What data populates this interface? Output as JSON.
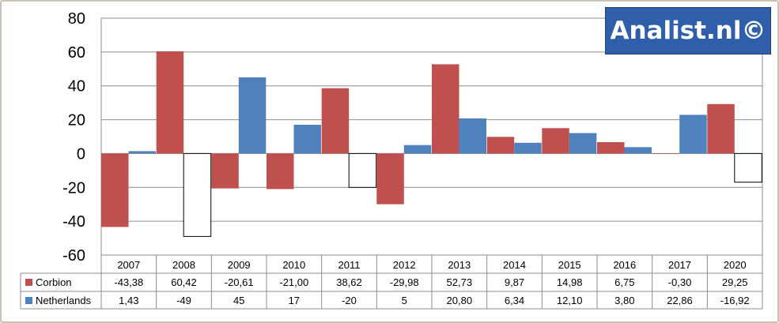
{
  "logo": {
    "text": "Analist.nl©"
  },
  "chart_data": {
    "type": "bar",
    "title": "",
    "xlabel": "",
    "ylabel": "",
    "ylim": [
      -60,
      80
    ],
    "yticks": [
      80,
      60,
      40,
      20,
      0,
      -20,
      -40,
      -60
    ],
    "grid": true,
    "legend": "table",
    "categories": [
      "2007",
      "2008",
      "2009",
      "2010",
      "2011",
      "2012",
      "2013",
      "2014",
      "2015",
      "2016",
      "2017",
      "2020"
    ],
    "series": [
      {
        "name": "Corbion",
        "color": "#c0504d",
        "values": [
          -43.38,
          60.42,
          -20.61,
          -21.0,
          38.62,
          -29.98,
          52.73,
          9.87,
          14.98,
          6.75,
          -0.3,
          29.25
        ],
        "labels": [
          "-43,38",
          "60,42",
          "-20,61",
          "-21,00",
          "38,62",
          "-29,98",
          "52,73",
          "9,87",
          "14,98",
          "6,75",
          "-0,30",
          "29,25"
        ]
      },
      {
        "name": "Netherlands",
        "color": "#4f81bd",
        "negative_color": "#ffffff",
        "values": [
          1.43,
          -49,
          45,
          17,
          -20,
          5,
          20.8,
          6.34,
          12.1,
          3.8,
          22.86,
          -16.92
        ],
        "labels": [
          "1,43",
          "-49",
          "45",
          "17",
          "-20",
          "5",
          "20,80",
          "6,34",
          "12,10",
          "3,80",
          "22,86",
          "-16,92"
        ]
      }
    ]
  }
}
